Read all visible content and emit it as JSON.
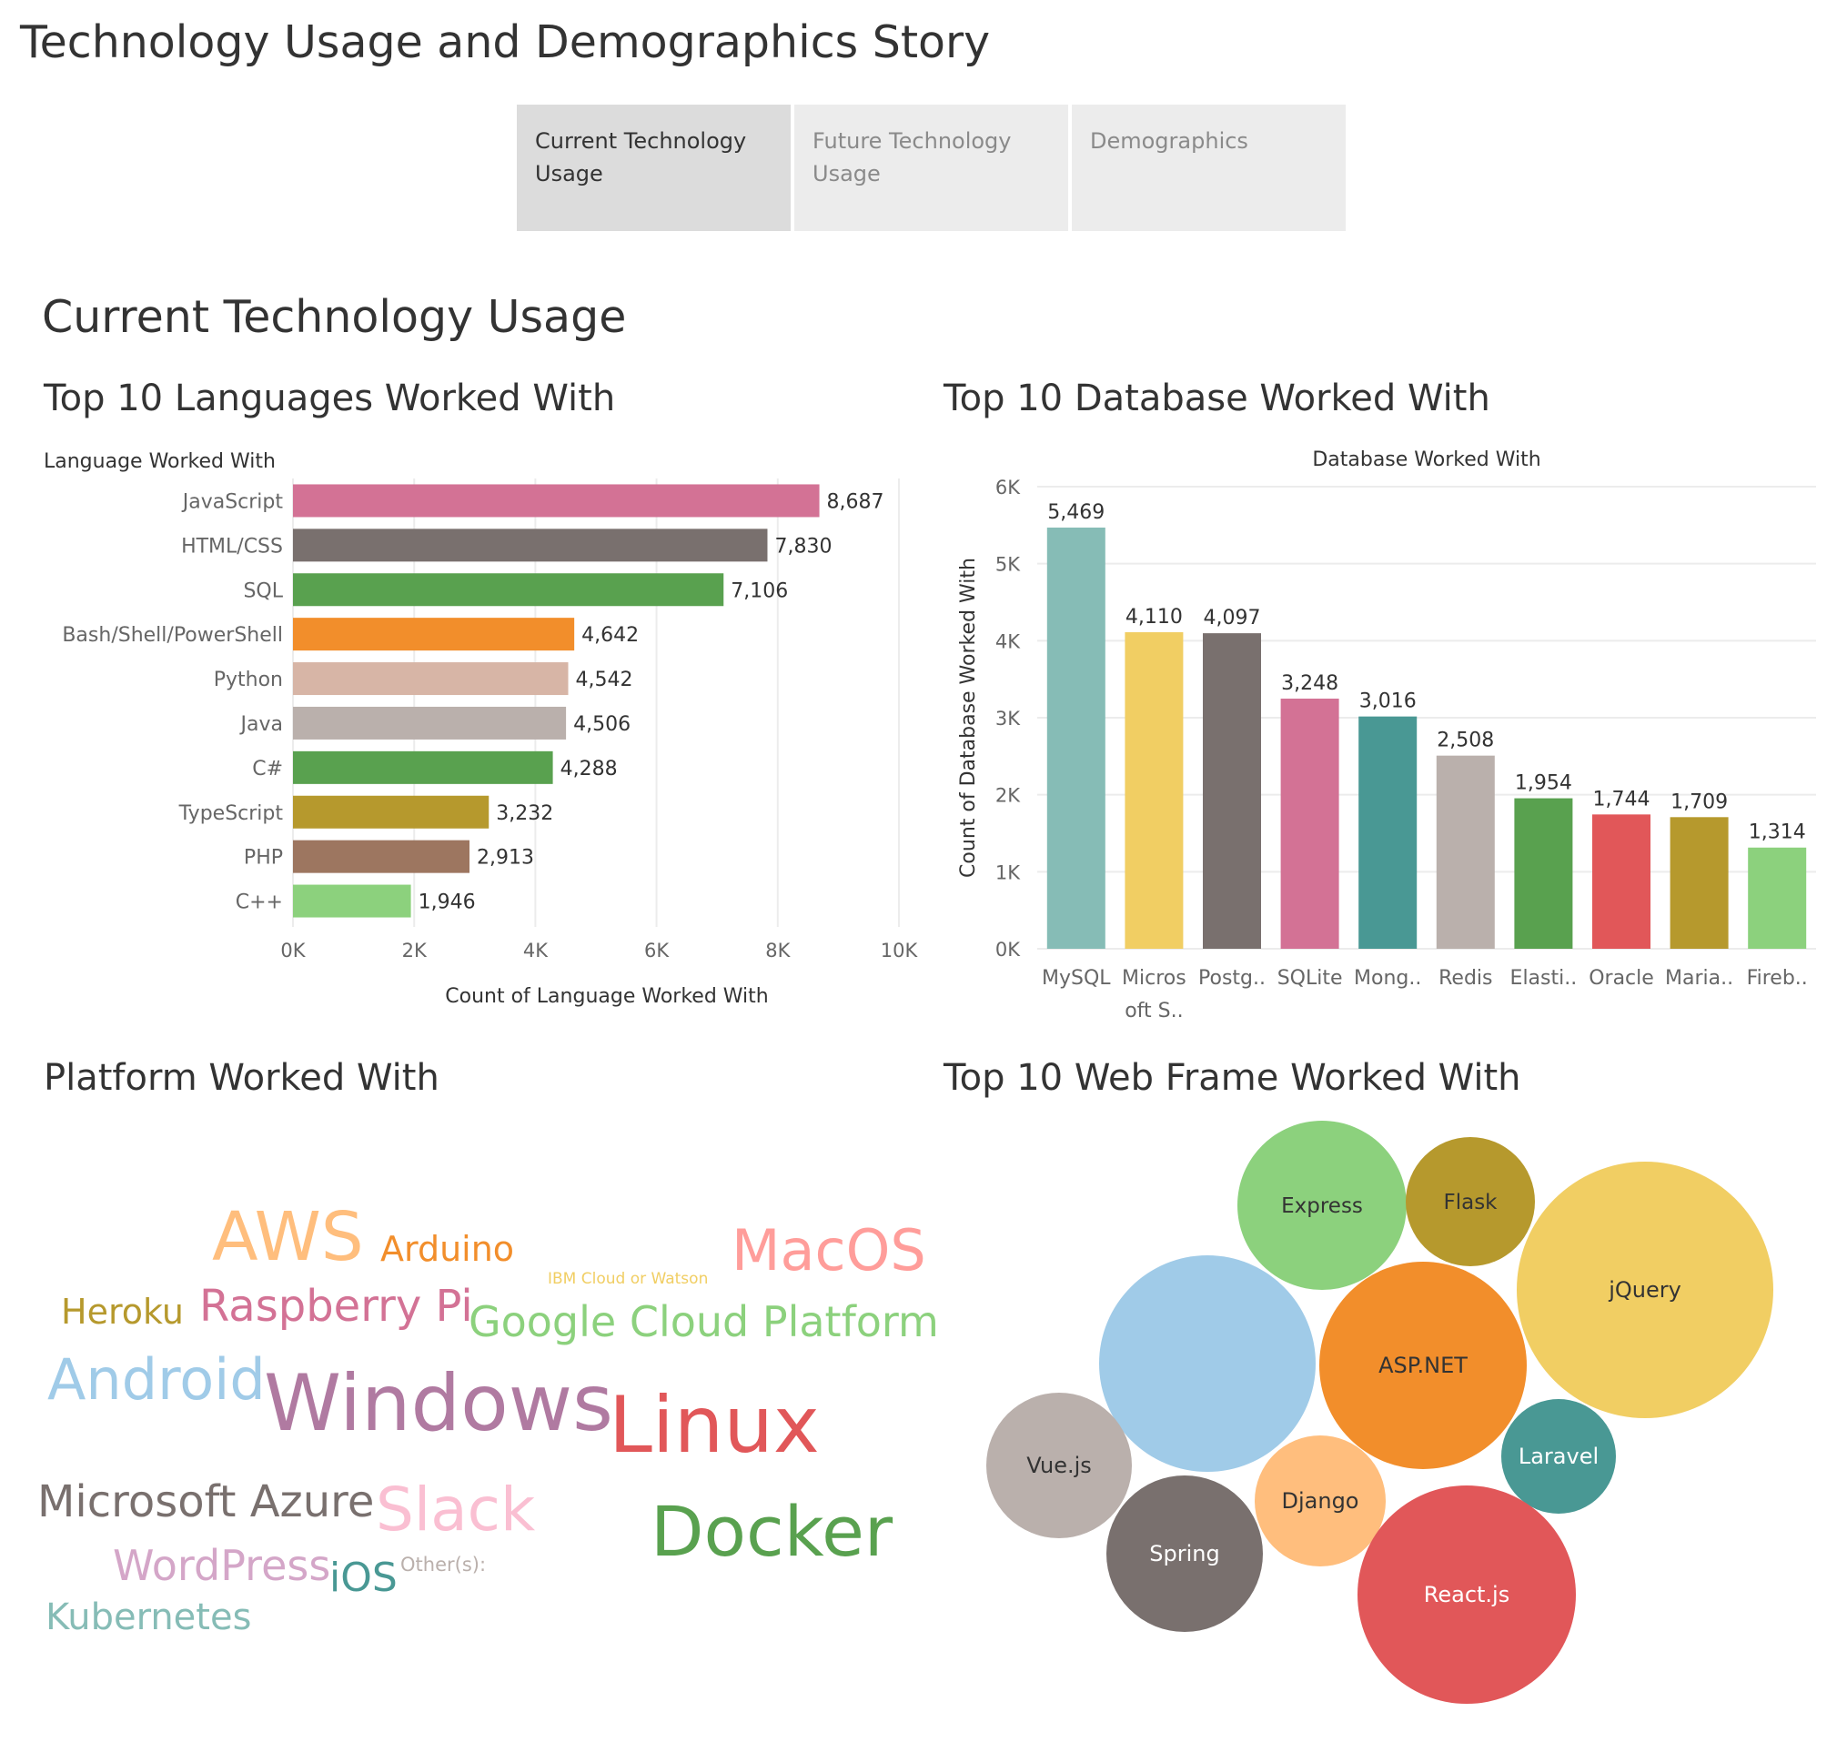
{
  "story": {
    "title": "Technology Usage and Demographics Story",
    "tabs": [
      {
        "label": "Current Technology Usage",
        "active": true
      },
      {
        "label": "Future Technology Usage",
        "active": false
      },
      {
        "label": "Demographics",
        "active": false
      }
    ]
  },
  "page": {
    "title": "Current Technology Usage"
  },
  "chart_data": [
    {
      "id": "languages",
      "type": "bar",
      "orientation": "horizontal",
      "title": "Top 10 Languages Worked With",
      "category_header": "Language Worked With",
      "xlabel": "Count of Language Worked With",
      "xlim": [
        0,
        10000
      ],
      "ticks": [
        0,
        2000,
        4000,
        6000,
        8000,
        10000
      ],
      "tick_labels": [
        "0K",
        "2K",
        "4K",
        "6K",
        "8K",
        "10K"
      ],
      "categories": [
        "JavaScript",
        "HTML/CSS",
        "SQL",
        "Bash/Shell/PowerShell",
        "Python",
        "Java",
        "C#",
        "TypeScript",
        "PHP",
        "C++"
      ],
      "values": [
        8687,
        7830,
        7106,
        4642,
        4542,
        4506,
        4288,
        3232,
        2913,
        1946
      ],
      "value_labels": [
        "8,687",
        "7,830",
        "7,106",
        "4,642",
        "4,542",
        "4,506",
        "4,288",
        "3,232",
        "2,913",
        "1,946"
      ],
      "colors": [
        "#d37295",
        "#79706e",
        "#59a14f",
        "#f28e2b",
        "#d7b5a6",
        "#bab0ac",
        "#59a14f",
        "#b6992d",
        "#9d7660",
        "#8cd17d"
      ],
      "grid": true
    },
    {
      "id": "databases",
      "type": "bar",
      "orientation": "vertical",
      "title": "Top 10 Database Worked With",
      "header": "Database Worked With",
      "ylabel": "Count of Database Worked With",
      "ylim": [
        0,
        6000
      ],
      "ticks": [
        0,
        1000,
        2000,
        3000,
        4000,
        5000,
        6000
      ],
      "tick_labels": [
        "0K",
        "1K",
        "2K",
        "3K",
        "4K",
        "5K",
        "6K"
      ],
      "categories": [
        [
          "MySQL"
        ],
        [
          "Micros",
          "oft S.."
        ],
        [
          "Postg.."
        ],
        [
          "SQLite"
        ],
        [
          "Mong.."
        ],
        [
          "Redis"
        ],
        [
          "Elasti.."
        ],
        [
          "Oracle"
        ],
        [
          "Maria.."
        ],
        [
          "Fireb.."
        ]
      ],
      "values": [
        5469,
        4110,
        4097,
        3248,
        3016,
        2508,
        1954,
        1744,
        1709,
        1314
      ],
      "value_labels": [
        "5,469",
        "4,110",
        "4,097",
        "3,248",
        "3,016",
        "2,508",
        "1,954",
        "1,744",
        "1,709",
        "1,314"
      ],
      "colors": [
        "#86bcb6",
        "#f1ce63",
        "#79706e",
        "#d37295",
        "#499894",
        "#bab0ac",
        "#59a14f",
        "#e15759",
        "#b6992d",
        "#8cd17d"
      ],
      "grid": true
    },
    {
      "id": "platforms",
      "type": "word_cloud",
      "title": "Platform Worked With",
      "words": [
        {
          "text": "AWS",
          "color": "#ffbe7d"
        },
        {
          "text": "Arduino",
          "color": "#f28e2b"
        },
        {
          "text": "IBM Cloud or Watson",
          "color": "#f1ce63"
        },
        {
          "text": "MacOS",
          "color": "#ff9d9a"
        },
        {
          "text": "Heroku",
          "color": "#b6992d"
        },
        {
          "text": "Raspberry Pi",
          "color": "#d37295"
        },
        {
          "text": "Google Cloud Platform",
          "color": "#8cd17d"
        },
        {
          "text": "Android",
          "color": "#a0cbe8"
        },
        {
          "text": "Windows",
          "color": "#b07aa1"
        },
        {
          "text": "Linux",
          "color": "#e15759"
        },
        {
          "text": "Microsoft Azure",
          "color": "#79706e"
        },
        {
          "text": "Slack",
          "color": "#fabfd2"
        },
        {
          "text": "Docker",
          "color": "#59a14f"
        },
        {
          "text": "WordPress",
          "color": "#d4a6c8"
        },
        {
          "text": "iOS",
          "color": "#499894"
        },
        {
          "text": "Other(s):",
          "color": "#bab0ac"
        },
        {
          "text": "Kubernetes",
          "color": "#86bcb6"
        }
      ]
    },
    {
      "id": "web_frameworks",
      "type": "bubble",
      "title": "Top 10 Web Frame Worked With",
      "bubbles": [
        {
          "label": "Express",
          "color": "#8cd17d",
          "text_color": "#333333"
        },
        {
          "label": "Flask",
          "color": "#b6992d",
          "text_color": "#333333"
        },
        {
          "label": "jQuery",
          "color": "#f1ce63",
          "text_color": "#333333"
        },
        {
          "label": "",
          "color": "#a0cbe8",
          "text_color": "#333333"
        },
        {
          "label": "ASP.NET",
          "color": "#f28e2b",
          "text_color": "#333333"
        },
        {
          "label": "Laravel",
          "color": "#499894",
          "text_color": "#ffffff"
        },
        {
          "label": "Vue.js",
          "color": "#bab0ac",
          "text_color": "#333333"
        },
        {
          "label": "Django",
          "color": "#ffbe7d",
          "text_color": "#333333"
        },
        {
          "label": "Spring",
          "color": "#79706e",
          "text_color": "#ffffff"
        },
        {
          "label": "React.js",
          "color": "#e15759",
          "text_color": "#ffffff"
        }
      ]
    }
  ]
}
